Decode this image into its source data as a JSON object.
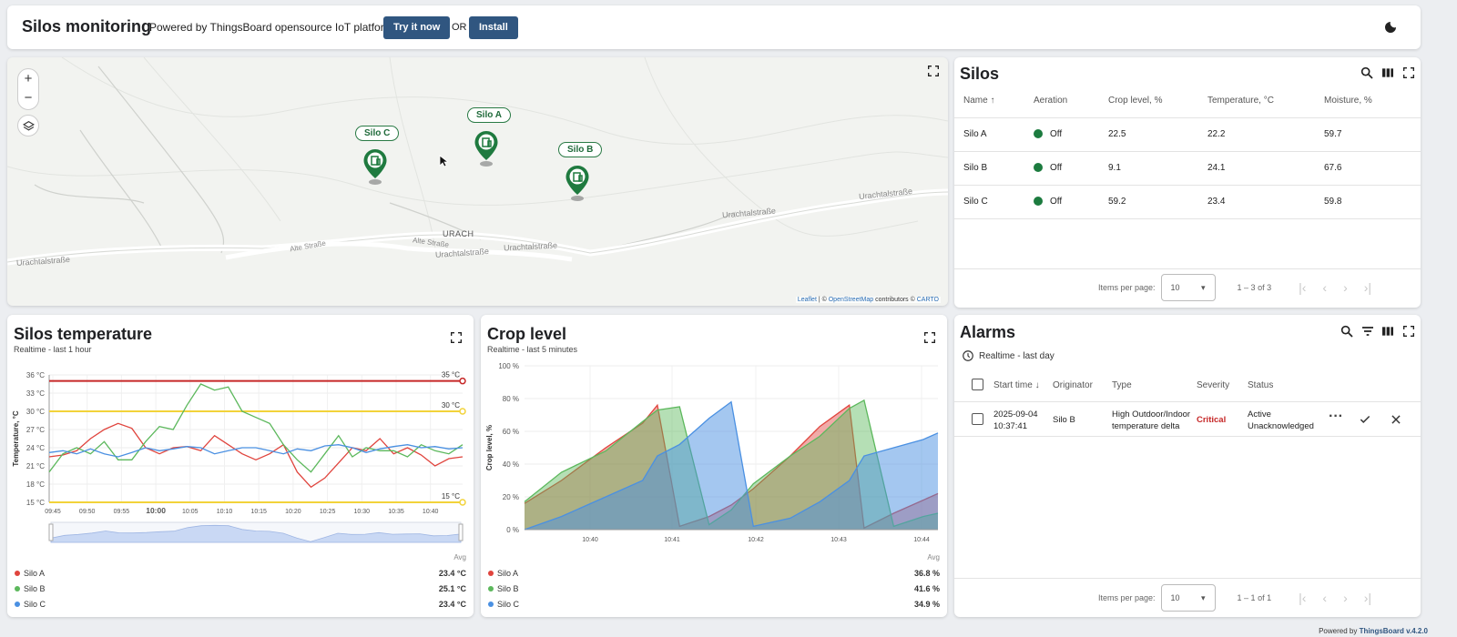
{
  "header": {
    "title": "Silos monitoring",
    "powered": "Powered by ThingsBoard opensource IoT platform.",
    "try_label": "Try it now",
    "or_label": "OR",
    "install_label": "Install"
  },
  "map": {
    "markers": [
      {
        "label": "Silo A"
      },
      {
        "label": "Silo B"
      },
      {
        "label": "Silo C"
      }
    ],
    "place_labels": {
      "urach": "URACH",
      "road1": "Urachtalstraße",
      "road2": "Urachtalstraße",
      "road3": "Urachtalstraße",
      "road4": "Urachtalstraße",
      "road5": "Alte Straße",
      "road6": "Alte Straße"
    },
    "attribution": {
      "leaflet": "Leaflet",
      "sep": "| ©",
      "osm": "OpenStreetMap",
      "contrib": "contributors ©",
      "carto": "CARTO"
    }
  },
  "silos": {
    "title": "Silos",
    "columns": {
      "name": "Name ↑",
      "aeration": "Aeration",
      "crop": "Crop level, %",
      "temp": "Temperature, °C",
      "moist": "Moisture, %"
    },
    "rows": [
      {
        "name": "Silo A",
        "aeration": "Off",
        "crop": "22.5",
        "temp": "22.2",
        "moist": "59.7"
      },
      {
        "name": "Silo B",
        "aeration": "Off",
        "crop": "9.1",
        "temp": "24.1",
        "moist": "67.6"
      },
      {
        "name": "Silo C",
        "aeration": "Off",
        "crop": "59.2",
        "temp": "23.4",
        "moist": "59.8"
      }
    ],
    "items_per_page_label": "Items per page:",
    "items_per_page": "10",
    "range": "1 – 3 of 3"
  },
  "temperature": {
    "title": "Silos temperature",
    "subtitle": "Realtime - last 1 hour",
    "ylabel": "Temperature, °C",
    "yticks": [
      "36 °C",
      "33 °C",
      "30 °C",
      "27 °C",
      "24 °C",
      "21 °C",
      "18 °C",
      "15 °C"
    ],
    "xticks": [
      "09:45",
      "09:50",
      "09:55",
      "10:00",
      "10:05",
      "10:10",
      "10:15",
      "10:20",
      "10:25",
      "10:30",
      "10:35",
      "10:40"
    ],
    "thresholds": {
      "high": "35 °C",
      "mid": "30 °C",
      "low": "15 °C"
    },
    "avg_label": "Avg",
    "legend": [
      {
        "name": "Silo A",
        "value": "23.4 °C",
        "color": "#e0443d"
      },
      {
        "name": "Silo B",
        "value": "25.1 °C",
        "color": "#5cb85c"
      },
      {
        "name": "Silo C",
        "value": "23.4 °C",
        "color": "#4a90e2"
      }
    ]
  },
  "crop": {
    "title": "Crop level",
    "subtitle": "Realtime - last 5 minutes",
    "ylabel": "Crop level, %",
    "yticks": [
      "100 %",
      "80 %",
      "60 %",
      "40 %",
      "20 %",
      "0 %"
    ],
    "xticks": [
      "10:40",
      "10:41",
      "10:42",
      "10:43",
      "10:44"
    ],
    "avg_label": "Avg",
    "legend": [
      {
        "name": "Silo A",
        "value": "36.8 %",
        "color": "#e0443d"
      },
      {
        "name": "Silo B",
        "value": "41.6 %",
        "color": "#5cb85c"
      },
      {
        "name": "Silo C",
        "value": "34.9 %",
        "color": "#4a90e2"
      }
    ]
  },
  "alarms": {
    "title": "Alarms",
    "timewindow": "Realtime - last day",
    "columns": {
      "start": "Start time ↓",
      "originator": "Originator",
      "type": "Type",
      "severity": "Severity",
      "status": "Status"
    },
    "row": {
      "date": "2025-09-04",
      "time": "10:37:41",
      "originator": "Silo B",
      "type1": "High Outdoor/Indoor",
      "type2": "temperature delta",
      "severity": "Critical",
      "status1": "Active",
      "status2": "Unacknowledged"
    },
    "items_per_page_label": "Items per page:",
    "items_per_page": "10",
    "range": "1 – 1 of 1"
  },
  "footer": {
    "powered": "Powered by",
    "brand": "ThingsBoard v.4.2.0"
  },
  "chart_data": [
    {
      "type": "line",
      "title": "Silos temperature",
      "ylabel": "Temperature, °C",
      "ylim": [
        15,
        36
      ],
      "x": [
        "09:43",
        "09:45",
        "09:47",
        "09:49",
        "09:51",
        "09:53",
        "09:55",
        "09:57",
        "09:59",
        "10:01",
        "10:03",
        "10:05",
        "10:07",
        "10:09",
        "10:11",
        "10:13",
        "10:15",
        "10:17",
        "10:19",
        "10:21",
        "10:23",
        "10:25",
        "10:27",
        "10:29",
        "10:31",
        "10:33",
        "10:35",
        "10:37",
        "10:39",
        "10:41",
        "10:43"
      ],
      "series": [
        {
          "name": "Silo A",
          "values": [
            22.5,
            22.8,
            23.5,
            25.5,
            27,
            28,
            27.2,
            24,
            23,
            24,
            24.2,
            23.5,
            26,
            24.5,
            23,
            22,
            23,
            24.5,
            20,
            17.5,
            19,
            21.5,
            24,
            23.5,
            25.5,
            23,
            24,
            22.8,
            21,
            22.2,
            22.5
          ]
        },
        {
          "name": "Silo B",
          "values": [
            20,
            23,
            24,
            23,
            25,
            22,
            22,
            25,
            27.5,
            27,
            31,
            34.5,
            33.5,
            34,
            30,
            29,
            28,
            24.5,
            22,
            20,
            23,
            26,
            22.5,
            24,
            23.5,
            23.5,
            22.5,
            24.5,
            23.5,
            23,
            24.5
          ]
        },
        {
          "name": "Silo C",
          "values": [
            23.2,
            23.5,
            23,
            23.8,
            23,
            22.5,
            23.2,
            24,
            23.5,
            23.8,
            24.2,
            24,
            23,
            23.5,
            24,
            24,
            23.5,
            23,
            23.8,
            23.5,
            24.3,
            24.5,
            24,
            23.2,
            23.8,
            24.2,
            24.5,
            24,
            24.2,
            23.8,
            24
          ]
        }
      ],
      "thresholds": [
        35,
        30,
        15
      ],
      "grid": true,
      "legend": "bottom"
    },
    {
      "type": "area",
      "title": "Crop level",
      "ylabel": "Crop level, %",
      "ylim": [
        0,
        100
      ],
      "x": [
        "10:39:35",
        "10:40:00",
        "10:40:30",
        "10:40:55",
        "10:41:05",
        "10:41:20",
        "10:41:40",
        "10:41:55",
        "10:42:10",
        "10:42:35",
        "10:42:55",
        "10:43:15",
        "10:43:25",
        "10:43:45",
        "10:44:05",
        "10:44:15"
      ],
      "series": [
        {
          "name": "Silo A",
          "values": [
            16,
            30,
            50,
            65,
            76,
            2,
            8,
            15,
            25,
            45,
            63,
            76,
            1,
            10,
            18,
            22
          ]
        },
        {
          "name": "Silo B",
          "values": [
            17,
            35,
            48,
            66,
            73,
            75,
            3,
            12,
            28,
            45,
            57,
            74,
            79,
            2,
            8,
            10
          ]
        },
        {
          "name": "Silo C",
          "values": [
            0,
            8,
            20,
            30,
            45,
            52,
            68,
            78,
            2,
            7,
            17,
            30,
            45,
            50,
            55,
            59
          ]
        }
      ],
      "grid": true,
      "legend": "bottom"
    }
  ]
}
